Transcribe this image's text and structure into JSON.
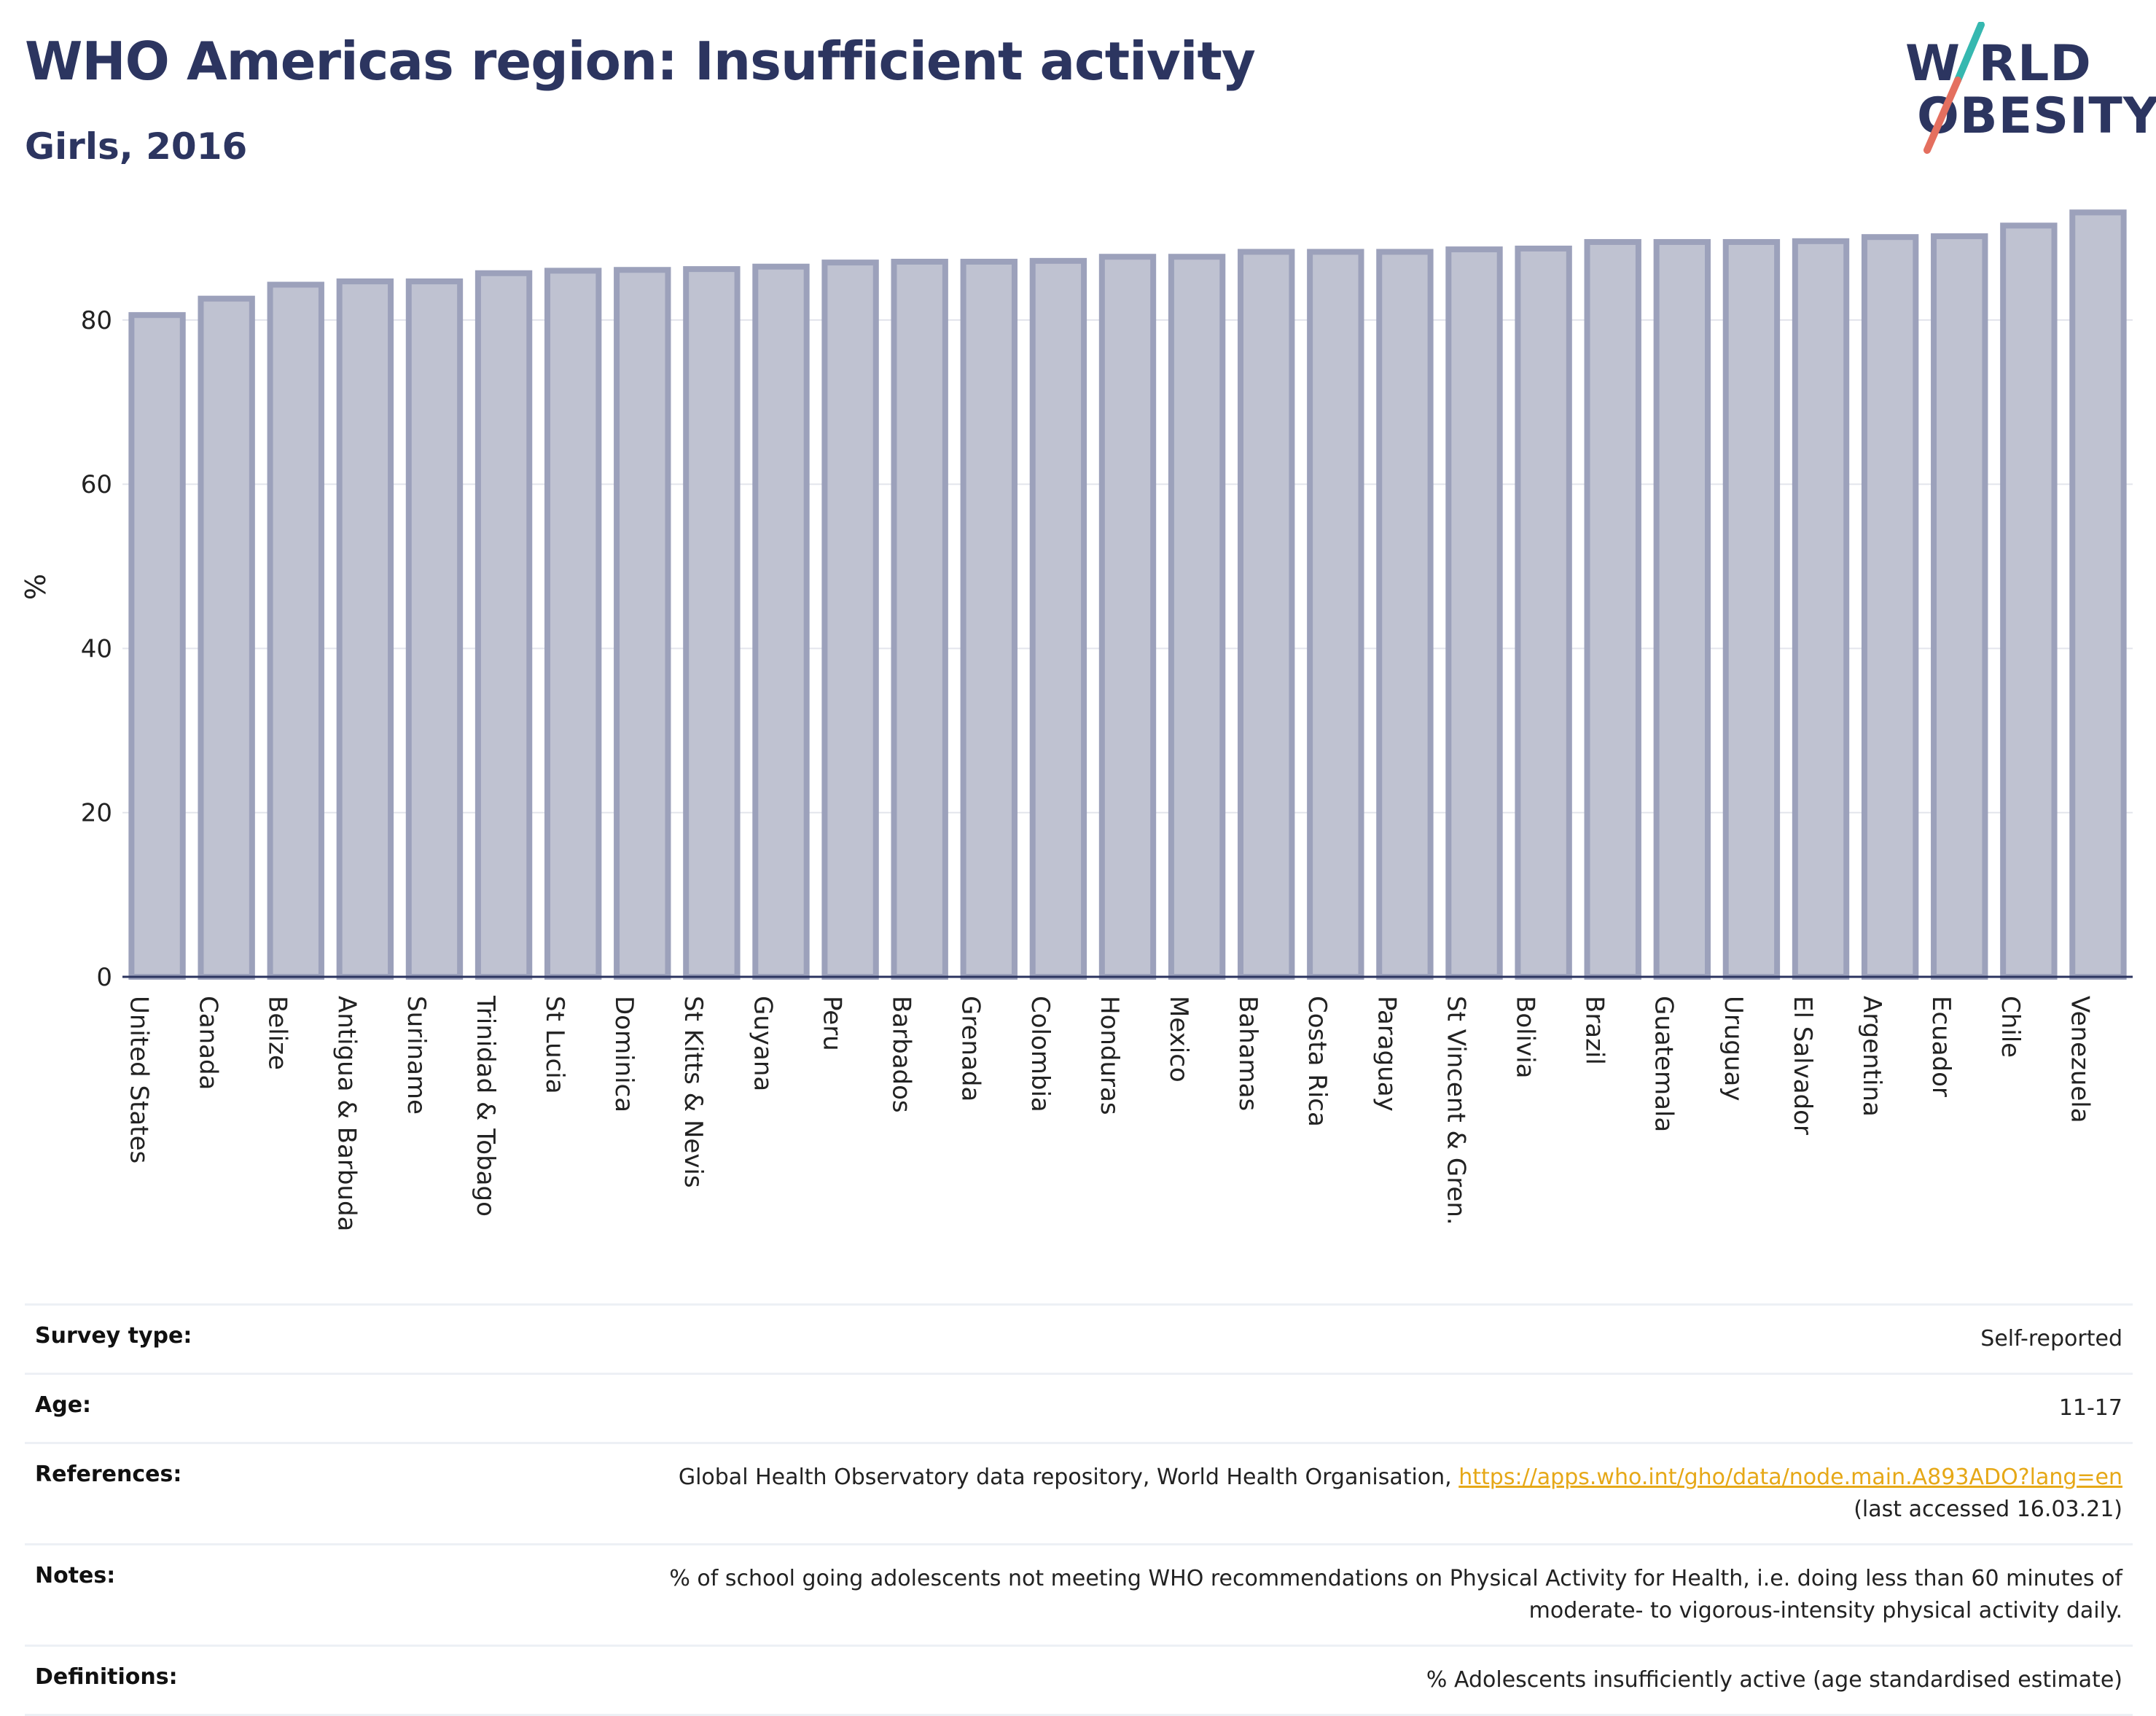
{
  "header": {
    "title": "WHO Americas region: Insufficient activity",
    "subtitle": "Girls, 2016"
  },
  "logo": {
    "line1": "W RLD",
    "line2": "OBESITY",
    "accent_teal": "#36b8b0",
    "accent_coral": "#e46f5f"
  },
  "chart_data": {
    "type": "bar",
    "title": "WHO Americas region: Insufficient activity",
    "subtitle": "Girls, 2016",
    "xlabel": "",
    "ylabel": "%",
    "ylim": [
      0,
      95
    ],
    "yticks": [
      0,
      20,
      40,
      60,
      80
    ],
    "grid": true,
    "bar_fill": "#bfc2d1",
    "bar_stroke": "#9ca1bb",
    "categories": [
      "United States",
      "Canada",
      "Belize",
      "Antigua & Barbuda",
      "Suriname",
      "Trinidad & Tobago",
      "St Lucia",
      "Dominica",
      "St Kitts & Nevis",
      "Guyana",
      "Peru",
      "Barbados",
      "Grenada",
      "Colombia",
      "Honduras",
      "Mexico",
      "Bahamas",
      "Costa Rica",
      "Paraguay",
      "St Vincent & Gren.",
      "Bolivia",
      "Brazil",
      "Guatemala",
      "Uruguay",
      "El Salvador",
      "Argentina",
      "Ecuador",
      "Chile",
      "Venezuela"
    ],
    "values": [
      80.6,
      82.6,
      84.3,
      84.7,
      84.7,
      85.7,
      86.0,
      86.1,
      86.2,
      86.5,
      87.0,
      87.1,
      87.1,
      87.2,
      87.7,
      87.7,
      88.3,
      88.3,
      88.3,
      88.6,
      88.7,
      89.5,
      89.5,
      89.5,
      89.6,
      90.1,
      90.2,
      91.5,
      93.1
    ]
  },
  "info": {
    "survey_type_label": "Survey type:",
    "survey_type_value": "Self-reported",
    "age_label": "Age:",
    "age_value": "11-17",
    "references_label": "References:",
    "references_text": "Global Health Observatory data repository, World Health Organisation,",
    "references_link": "https://apps.who.int/gho/data/node.main.A893ADO?lang=en",
    "references_accessed": "(last accessed 16.03.21)",
    "notes_label": "Notes:",
    "notes_line1": "% of school going adolescents not meeting WHO recommendations on Physical Activity for Health, i.e. doing less than 60 minutes of",
    "notes_line2": "moderate- to vigorous-intensity physical activity daily.",
    "definitions_label": "Definitions:",
    "definitions_value": "% Adolescents insufficiently active (age standardised estimate)"
  }
}
